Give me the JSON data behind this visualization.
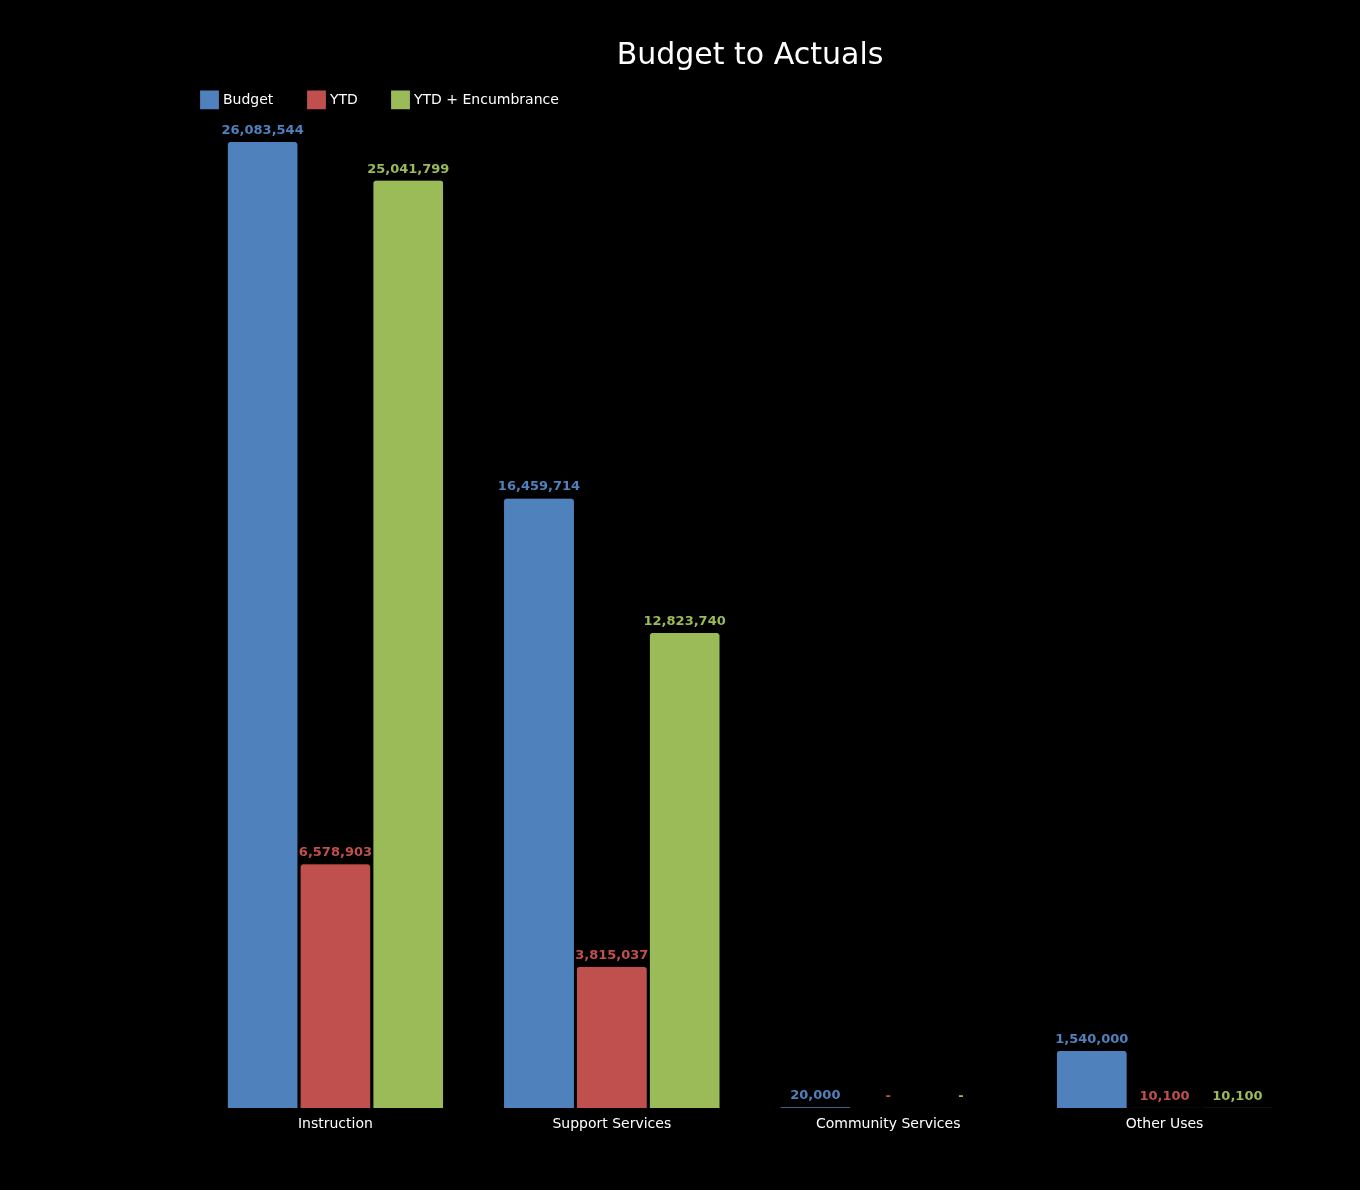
{
  "chart_data": {
    "type": "bar",
    "title": "Budget to Actuals",
    "categories": [
      "Instruction",
      "Support Services",
      "Community Services",
      "Other Uses"
    ],
    "series": [
      {
        "name": "Budget",
        "color": "#4f81bd",
        "values": [
          26083544,
          16459714,
          20000,
          1540000
        ],
        "value_labels": [
          "26,083,544",
          "16,459,714",
          "20,000",
          "1,540,000"
        ]
      },
      {
        "name": "YTD",
        "color": "#c0504d",
        "values": [
          6578903,
          3815037,
          0,
          10100
        ],
        "value_labels": [
          "6,578,903",
          "3,815,037",
          "-",
          "10,100"
        ]
      },
      {
        "name": "YTD + Encumbrance",
        "color": "#9bbb59",
        "values": [
          25041799,
          12823740,
          0,
          10100
        ],
        "value_labels": [
          "25,041,799",
          "12,823,740",
          "-",
          "10,100"
        ]
      }
    ],
    "legend": "top",
    "grid": false
  }
}
